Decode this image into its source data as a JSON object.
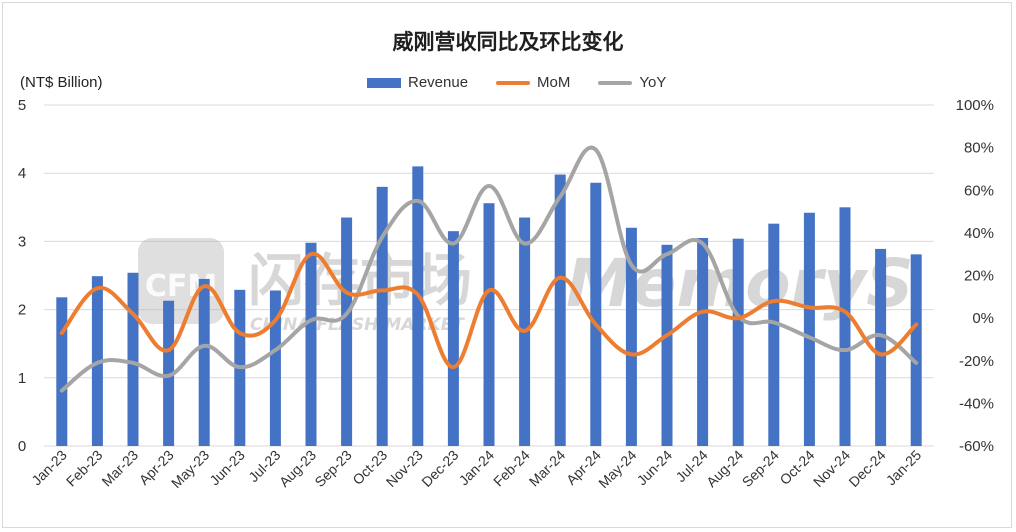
{
  "title": "威刚营收同比及环比变化",
  "unit_label": "(NT$ Billion)",
  "watermarks": {
    "cfm": "CFM",
    "cn": "闪存市场",
    "en": "CHINA FLASH MARKET",
    "memory": "MemoryS"
  },
  "colors": {
    "revenue": "#4472c4",
    "mom": "#ed7d31",
    "yoy": "#a5a5a5",
    "grid": "#d9d9d9"
  },
  "legend": [
    {
      "key": "revenue",
      "label": "Revenue",
      "kind": "bar"
    },
    {
      "key": "mom",
      "label": "MoM",
      "kind": "line"
    },
    {
      "key": "yoy",
      "label": "YoY",
      "kind": "line"
    }
  ],
  "chart_data": {
    "type": "bar",
    "title": "威刚营收同比及环比变化",
    "ylabel": "(NT$ Billion)",
    "categories": [
      "Jan-23",
      "Feb-23",
      "Mar-23",
      "Apr-23",
      "May-23",
      "Jun-23",
      "Jul-23",
      "Aug-23",
      "Sep-23",
      "Oct-23",
      "Nov-23",
      "Dec-23",
      "Jan-24",
      "Feb-24",
      "Mar-24",
      "Apr-24",
      "May-24",
      "Jun-24",
      "Jul-24",
      "Aug-24",
      "Sep-24",
      "Oct-24",
      "Nov-24",
      "Dec-24",
      "Jan-25"
    ],
    "ylim": [
      0,
      5
    ],
    "yticks": [
      "0",
      "1",
      "2",
      "3",
      "4",
      "5"
    ],
    "y2lim": [
      -60,
      100
    ],
    "y2ticks": [
      "-60%",
      "-40%",
      "-20%",
      "0%",
      "20%",
      "40%",
      "60%",
      "80%",
      "100%"
    ],
    "grid": true,
    "legend_position": "top",
    "series": [
      {
        "name": "Revenue",
        "type": "bar",
        "axis": "left",
        "values": [
          2.18,
          2.49,
          2.54,
          2.13,
          2.45,
          2.29,
          2.28,
          2.98,
          3.35,
          3.8,
          4.1,
          3.15,
          3.56,
          3.35,
          3.98,
          3.86,
          3.2,
          2.95,
          3.05,
          3.04,
          3.26,
          3.42,
          3.5,
          2.89,
          2.81
        ]
      },
      {
        "name": "MoM",
        "type": "line",
        "axis": "right",
        "values": [
          -7,
          14,
          2,
          -15,
          15,
          -7,
          -1,
          30,
          12,
          13,
          11,
          -23,
          13,
          -6,
          19,
          -3,
          -17,
          -8,
          3,
          0,
          8,
          5,
          3,
          -17,
          -3
        ]
      },
      {
        "name": "YoY",
        "type": "line",
        "axis": "right",
        "values": [
          -34,
          -21,
          -21,
          -27,
          -13,
          -23,
          -15,
          -1,
          2,
          38,
          55,
          35,
          62,
          35,
          57,
          79,
          25,
          30,
          35,
          1,
          -2,
          -9,
          -15,
          -8,
          -21
        ]
      }
    ]
  }
}
